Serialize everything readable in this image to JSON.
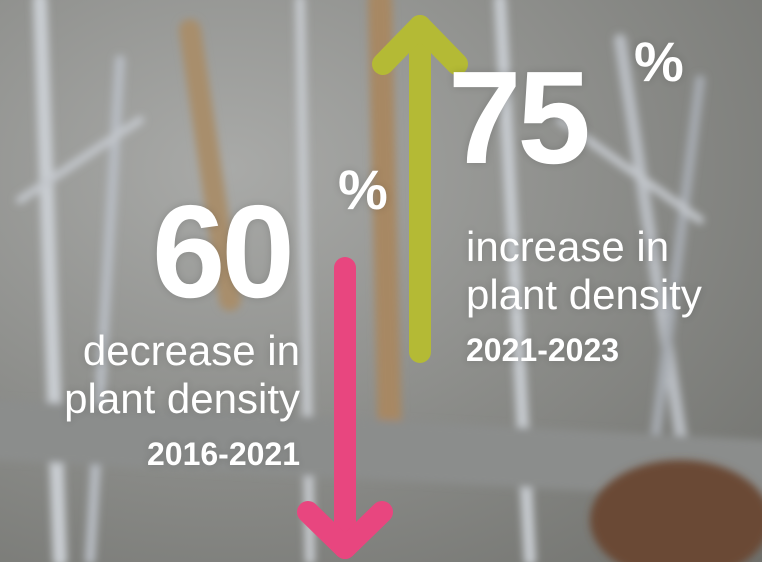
{
  "stats": [
    {
      "value": 60,
      "unit": "%",
      "label": [
        "decrease in",
        "plant density"
      ],
      "period": "2016-2021"
    },
    {
      "value": 75,
      "unit": "%",
      "label": [
        "increase in",
        "plant density"
      ],
      "period": "2021-2023"
    }
  ]
}
